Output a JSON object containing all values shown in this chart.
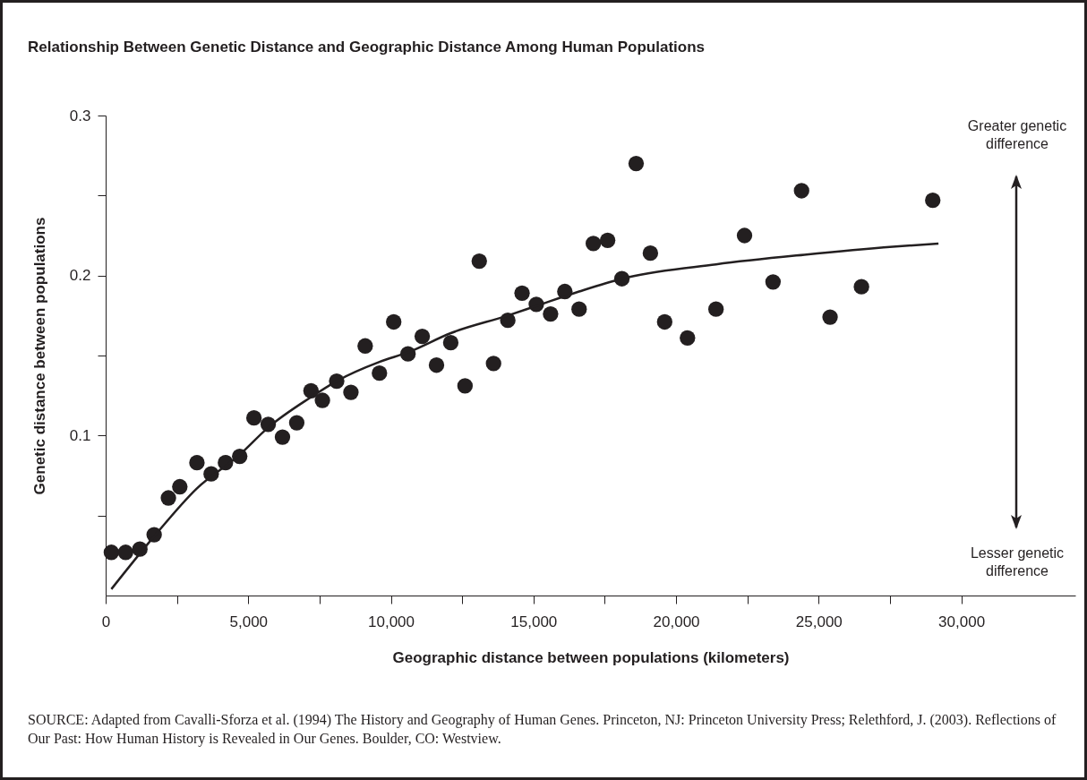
{
  "chart_data": {
    "type": "scatter",
    "title": "Relationship Between Genetic Distance and Geographic Distance Among Human Populations",
    "xlabel": "Geographic distance between populations (kilometers)",
    "ylabel": "Genetic distance between populations",
    "series": [
      {
        "marker": "circle",
        "color": "#231f20",
        "x": [
          200,
          700,
          1200,
          1700,
          2200,
          2600,
          3200,
          3700,
          4200,
          4700,
          5200,
          5700,
          6200,
          6700,
          7200,
          7600,
          8100,
          8600,
          9100,
          9600,
          10100,
          10600,
          11100,
          11600,
          12100,
          12600,
          13100,
          13600,
          14100,
          14600,
          15100,
          15600,
          16100,
          16600,
          17100,
          17600,
          18100,
          18600,
          19100,
          19600,
          20400,
          21400,
          22400,
          23400,
          24400,
          25400,
          26500,
          29000
        ],
        "values": [
          0.027,
          0.027,
          0.029,
          0.038,
          0.061,
          0.068,
          0.083,
          0.076,
          0.083,
          0.087,
          0.111,
          0.107,
          0.099,
          0.108,
          0.128,
          0.122,
          0.134,
          0.127,
          0.156,
          0.139,
          0.171,
          0.151,
          0.162,
          0.144,
          0.158,
          0.131,
          0.209,
          0.145,
          0.172,
          0.189,
          0.182,
          0.176,
          0.19,
          0.179,
          0.22,
          0.222,
          0.198,
          0.27,
          0.214,
          0.171,
          0.161,
          0.179,
          0.225,
          0.196,
          0.253,
          0.174,
          0.193,
          0.247
        ]
      },
      {
        "type": "line",
        "marker": "none",
        "color": "#231f20",
        "x": [
          200,
          1700,
          3200,
          4700,
          5700,
          7200,
          8100,
          9600,
          10600,
          12100,
          14100,
          15100,
          16600,
          18100,
          21400,
          24500,
          27600,
          29200
        ],
        "values": [
          0.004,
          0.037,
          0.067,
          0.088,
          0.105,
          0.124,
          0.134,
          0.146,
          0.152,
          0.164,
          0.175,
          0.181,
          0.19,
          0.198,
          0.207,
          0.213,
          0.218,
          0.22
        ]
      }
    ],
    "xlim": [
      0,
      34000
    ],
    "ylim": [
      0,
      0.3
    ],
    "xticks": [
      0,
      {
        "value": 2500,
        "label": null
      },
      {
        "value": 5000,
        "label": "5,000"
      },
      {
        "value": 7500,
        "label": null
      },
      {
        "value": 10000,
        "label": "10,000"
      },
      {
        "value": 12500,
        "label": null
      },
      {
        "value": 15000,
        "label": "15,000"
      },
      {
        "value": 17500,
        "label": null
      },
      {
        "value": 20000,
        "label": "20,000"
      },
      {
        "value": 22500,
        "label": null
      },
      {
        "value": 25000,
        "label": "25,000"
      },
      {
        "value": 27500,
        "label": null
      },
      {
        "value": 30000,
        "label": "30,000"
      }
    ],
    "yticks": [
      {
        "value": 0.05,
        "label": null
      },
      0.1,
      {
        "value": 0.15,
        "label": null
      },
      0.2,
      {
        "value": 0.25,
        "label": null
      },
      0.3
    ],
    "line_style": "solid",
    "grid": false,
    "annotations": [
      "Greater genetic difference",
      "Lesser genetic difference",
      "SOURCE: Adapted from Cavalli-Sforza et al. (1994) The History and Geography of Human Genes. Princeton, NJ: Princeton University Press; Relethford, J. (2003). Reflections of Our Past: How Human History is Revealed in Our Genes. Boulder, CO: Westview."
    ]
  }
}
